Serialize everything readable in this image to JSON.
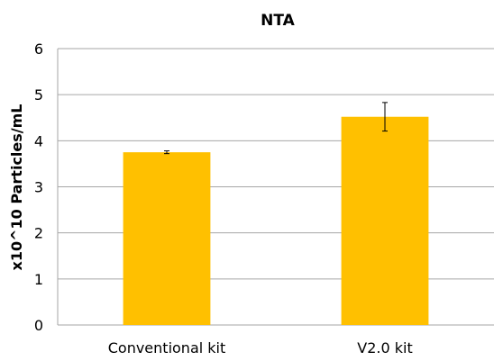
{
  "chart_data": {
    "type": "bar",
    "title": "NTA",
    "xlabel": "",
    "ylabel": "x10^10 Particles/mL",
    "categories": [
      "Conventional kit",
      "V2.0 kit"
    ],
    "values": [
      3.75,
      4.52
    ],
    "error": [
      0.03,
      0.31
    ],
    "ylim": [
      0,
      6
    ],
    "yticks": [
      "0",
      "1",
      "2",
      "3",
      "4",
      "5",
      "6"
    ],
    "grid": true,
    "legend": "none",
    "colors": {
      "bar": "#FFC000",
      "grid": "#A6A6A6",
      "error": "#000000"
    }
  }
}
